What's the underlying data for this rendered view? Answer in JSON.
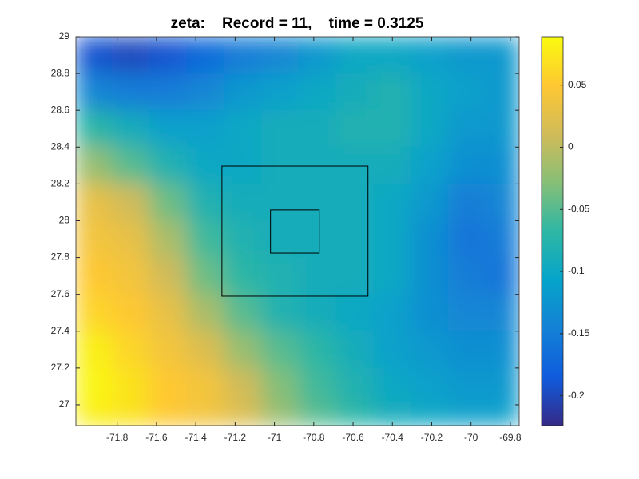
{
  "chart_data": {
    "type": "heatmap",
    "title": "zeta:    Record = 11,    time = 0.3125",
    "x": [
      -71.92,
      -71.73,
      -71.54,
      -71.35,
      -71.16,
      -70.97,
      -70.78,
      -70.59,
      -70.4,
      -70.21,
      -70.02,
      -69.83
    ],
    "y": [
      28.9,
      28.7,
      28.5,
      28.3,
      28.1,
      27.9,
      27.7,
      27.5,
      27.3,
      27.1,
      26.93
    ],
    "z": [
      [
        -0.19,
        -0.2,
        -0.19,
        -0.17,
        -0.15,
        -0.14,
        -0.12,
        -0.1,
        -0.1,
        -0.11,
        -0.12,
        -0.12
      ],
      [
        -0.14,
        -0.15,
        -0.15,
        -0.14,
        -0.12,
        -0.11,
        -0.1,
        -0.09,
        -0.08,
        -0.1,
        -0.11,
        -0.12
      ],
      [
        -0.07,
        -0.09,
        -0.11,
        -0.11,
        -0.1,
        -0.09,
        -0.09,
        -0.08,
        -0.08,
        -0.1,
        -0.12,
        -0.12
      ],
      [
        -0.02,
        -0.05,
        -0.08,
        -0.1,
        -0.1,
        -0.09,
        -0.09,
        -0.09,
        -0.09,
        -0.11,
        -0.13,
        -0.13
      ],
      [
        0.03,
        0.01,
        -0.04,
        -0.08,
        -0.09,
        -0.09,
        -0.09,
        -0.09,
        -0.1,
        -0.12,
        -0.15,
        -0.14
      ],
      [
        0.04,
        0.03,
        -0.01,
        -0.06,
        -0.08,
        -0.09,
        -0.09,
        -0.09,
        -0.1,
        -0.13,
        -0.16,
        -0.15
      ],
      [
        0.05,
        0.04,
        0.01,
        -0.04,
        -0.07,
        -0.08,
        -0.09,
        -0.09,
        -0.1,
        -0.13,
        -0.15,
        -0.16
      ],
      [
        0.06,
        0.05,
        0.03,
        -0.01,
        -0.05,
        -0.08,
        -0.09,
        -0.1,
        -0.11,
        -0.13,
        -0.14,
        -0.14
      ],
      [
        0.08,
        0.06,
        0.04,
        0.02,
        -0.02,
        -0.05,
        -0.07,
        -0.09,
        -0.11,
        -0.12,
        -0.13,
        -0.13
      ],
      [
        0.085,
        0.07,
        0.05,
        0.04,
        0.01,
        -0.03,
        -0.06,
        -0.08,
        -0.1,
        -0.11,
        -0.12,
        -0.12
      ],
      [
        0.08,
        0.07,
        0.05,
        0.04,
        0.02,
        -0.02,
        -0.05,
        -0.07,
        -0.09,
        -0.1,
        -0.11,
        -0.11
      ]
    ],
    "xlim": [
      -72.01,
      -69.755
    ],
    "ylim": [
      26.887,
      29
    ],
    "xticks": [
      -71.8,
      -71.6,
      -71.4,
      -71.2,
      -71,
      -70.8,
      -70.6,
      -70.4,
      -70.2,
      -70,
      -69.8
    ],
    "yticks": [
      27,
      27.2,
      27.4,
      27.6,
      27.8,
      28,
      28.2,
      28.4,
      28.6,
      28.8,
      29
    ],
    "clim": [
      -0.224,
      0.089
    ],
    "cticks": [
      -0.2,
      -0.15,
      -0.1,
      -0.05,
      0,
      0.05
    ],
    "boxes": [
      {
        "xlim": [
          -71.267,
          -70.524
        ],
        "ylim": [
          27.59,
          28.297
        ]
      },
      {
        "xlim": [
          -71.02,
          -70.772
        ],
        "ylim": [
          27.824,
          28.059
        ]
      }
    ]
  }
}
